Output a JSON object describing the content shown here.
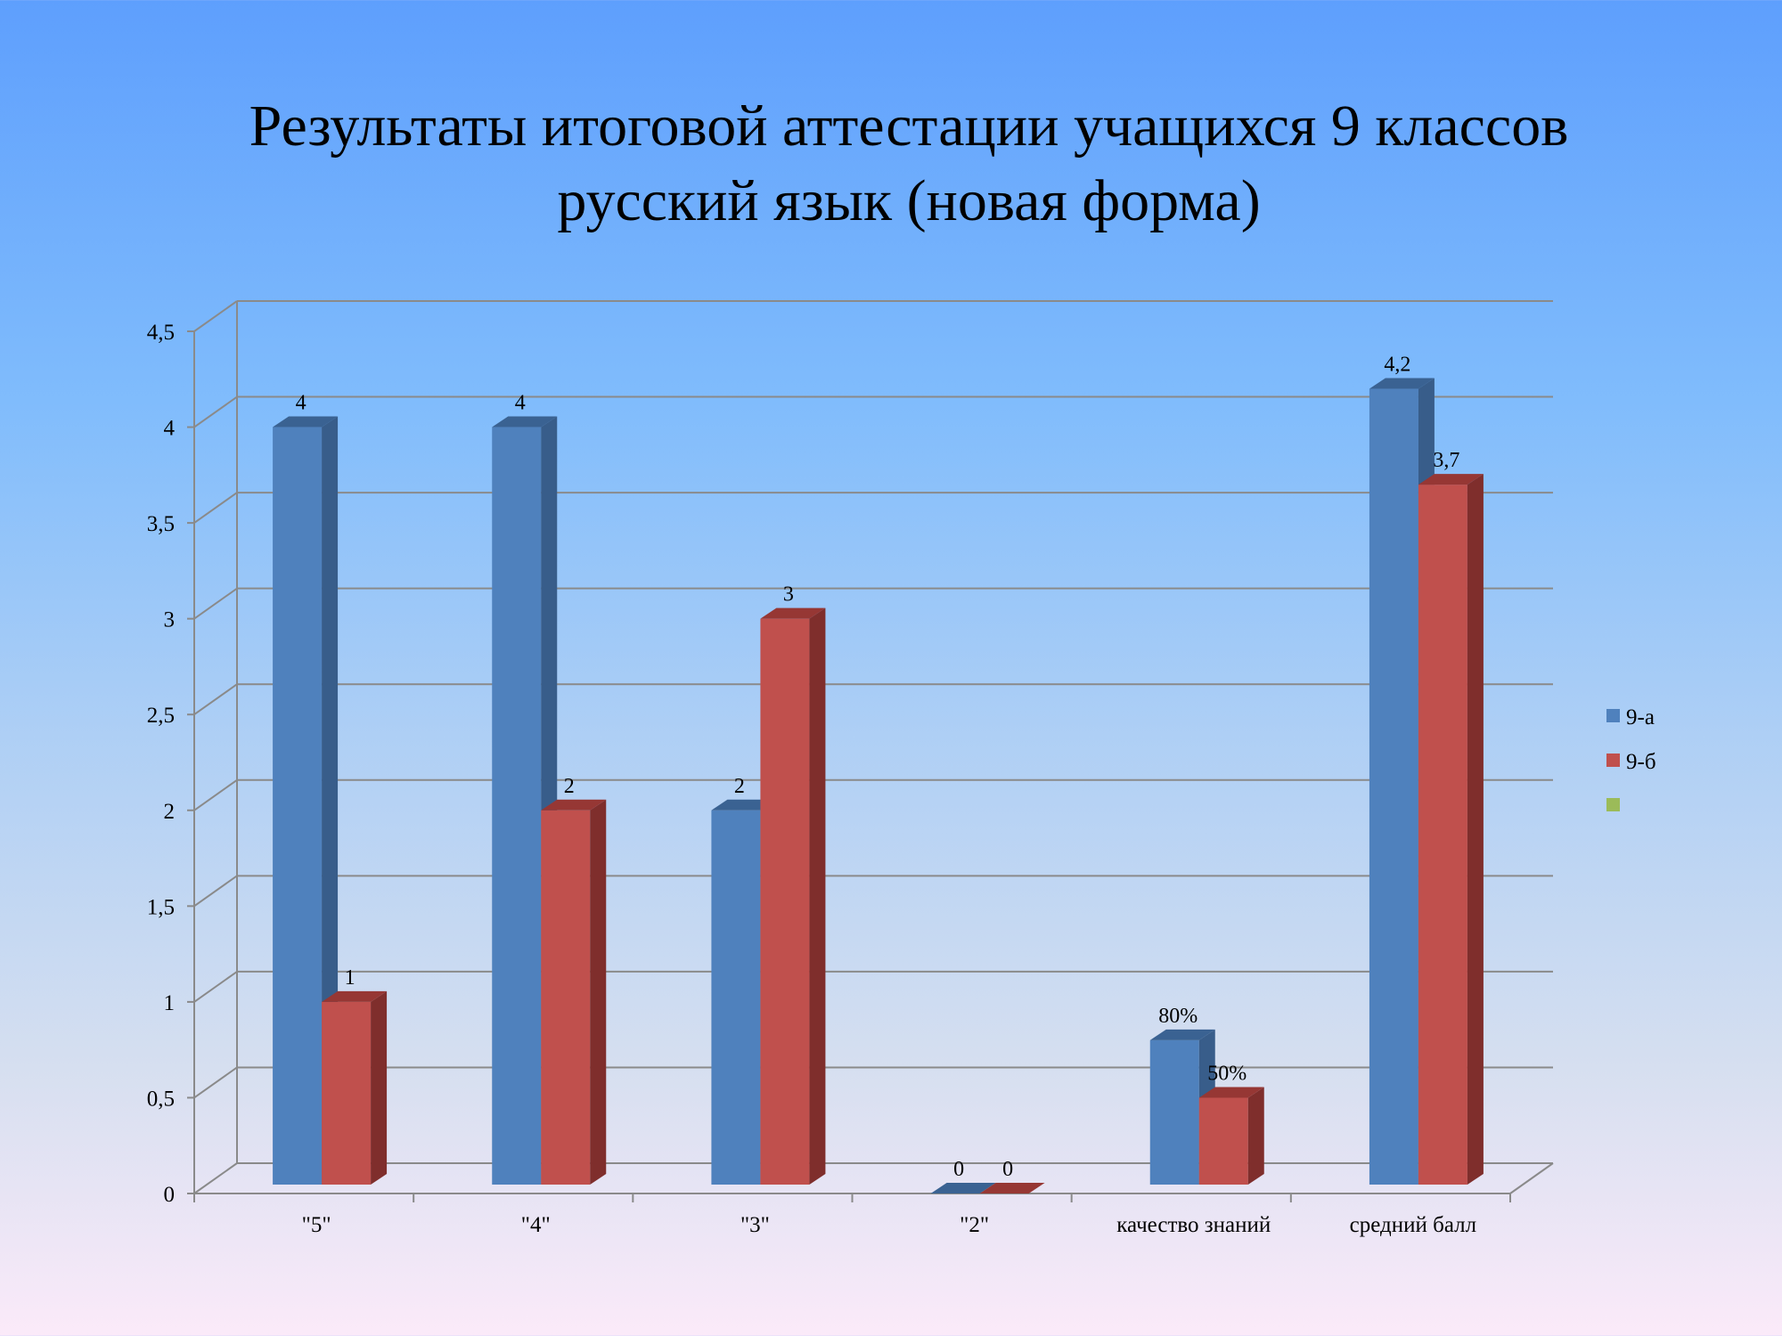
{
  "chart_data": {
    "type": "bar",
    "title_lines": [
      "Результаты итоговой аттестации учащихся 9 классов",
      "русский язык (новая форма)"
    ],
    "categories": [
      "\"5\"",
      "\"4\"",
      "\"3\"",
      "\"2\"",
      "качество знаний",
      "средний балл"
    ],
    "y_ticks": [
      "0",
      "0,5",
      "1",
      "1,5",
      "2",
      "2,5",
      "3",
      "3,5",
      "4",
      "4,5"
    ],
    "ylim": [
      0,
      4.5
    ],
    "grid": true,
    "legend_position": "right",
    "series": [
      {
        "name": "9-а",
        "values": [
          4,
          4,
          2,
          0,
          0.8,
          4.2
        ],
        "labels": [
          "4",
          "4",
          "2",
          "0",
          "80%",
          "4,2"
        ],
        "color": "#4f81bd",
        "side_color": "#385d8a",
        "top_color": "#3a6292"
      },
      {
        "name": "9-б",
        "values": [
          1,
          2,
          3,
          0,
          0.5,
          3.7
        ],
        "labels": [
          "1",
          "2",
          "3",
          "0",
          "50%",
          "3,7"
        ],
        "color": "#c0504d",
        "side_color": "#7f2e2c",
        "top_color": "#963734"
      }
    ],
    "legend_extra": {
      "name": "",
      "color": "#9bbb59"
    }
  }
}
